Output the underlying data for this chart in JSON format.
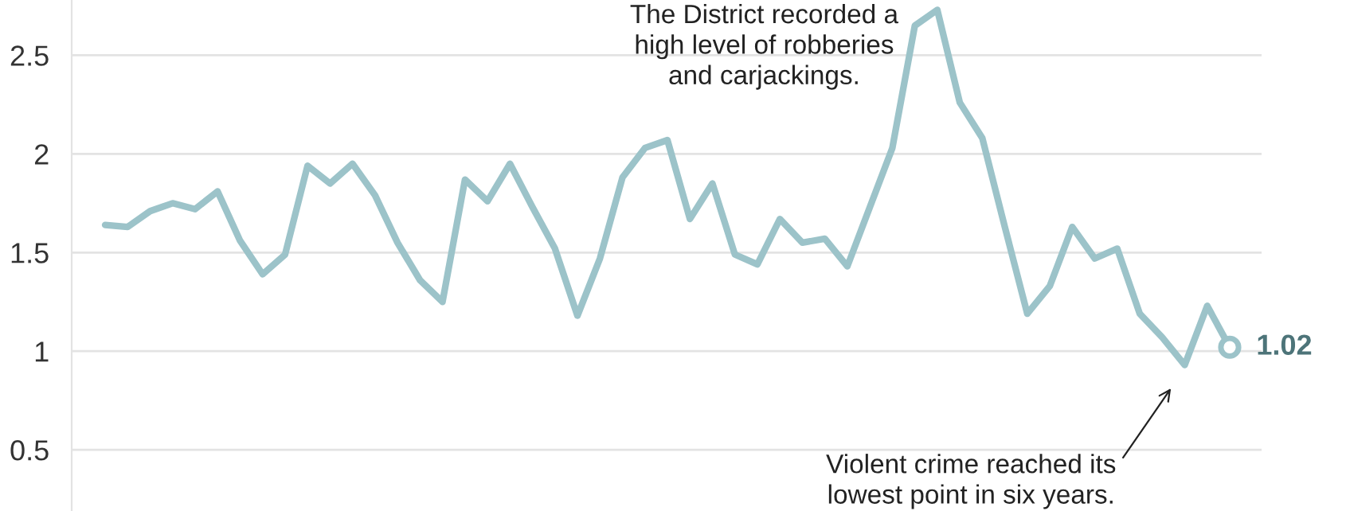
{
  "chart_data": {
    "type": "line",
    "categories": [
      null,
      null,
      null,
      null,
      null,
      null,
      null,
      null,
      null,
      null,
      null,
      null,
      null,
      null,
      null,
      null,
      null,
      null,
      null,
      null,
      null,
      null,
      null,
      null,
      null,
      null,
      null,
      null,
      null,
      null,
      null,
      null,
      null,
      null,
      null,
      null,
      null,
      null,
      null,
      null,
      null,
      null,
      null,
      null,
      null,
      null,
      null,
      null,
      null,
      null,
      null
    ],
    "series": [
      {
        "color": "#9cc3c9",
        "values": [
          1.64,
          1.63,
          1.71,
          1.75,
          1.72,
          1.81,
          1.56,
          1.39,
          1.49,
          1.94,
          1.85,
          1.95,
          1.79,
          1.55,
          1.36,
          1.25,
          1.87,
          1.76,
          1.95,
          1.73,
          1.52,
          1.18,
          1.47,
          1.88,
          2.03,
          2.07,
          1.67,
          1.85,
          1.49,
          1.44,
          1.67,
          1.55,
          1.57,
          1.43,
          1.73,
          2.03,
          2.65,
          2.73,
          2.26,
          2.08,
          1.63,
          1.19,
          1.33,
          1.63,
          1.47,
          1.52,
          1.19,
          1.07,
          0.93,
          1.23,
          1.02
        ],
        "value_labels": [
          null,
          null,
          null,
          null,
          null,
          null,
          null,
          null,
          null,
          null,
          null,
          null,
          null,
          null,
          null,
          null,
          null,
          null,
          null,
          null,
          null,
          null,
          null,
          null,
          null,
          null,
          null,
          null,
          null,
          null,
          null,
          null,
          null,
          null,
          null,
          null,
          null,
          null,
          null,
          null,
          null,
          null,
          null,
          null,
          null,
          null,
          null,
          null,
          null,
          null,
          "1.02"
        ]
      }
    ],
    "ylim": [
      0.19,
      2.78
    ],
    "yticks": [
      0.5,
      1,
      1.5,
      2,
      2.5
    ],
    "grid": "y",
    "tick_labels": "y",
    "marker": "none",
    "line_style": "solid",
    "annotations": [
      "The District recorded a\nhigh level of robberies\nand carjackings.",
      "Violent crime reached its\nlowest point in six years."
    ]
  }
}
